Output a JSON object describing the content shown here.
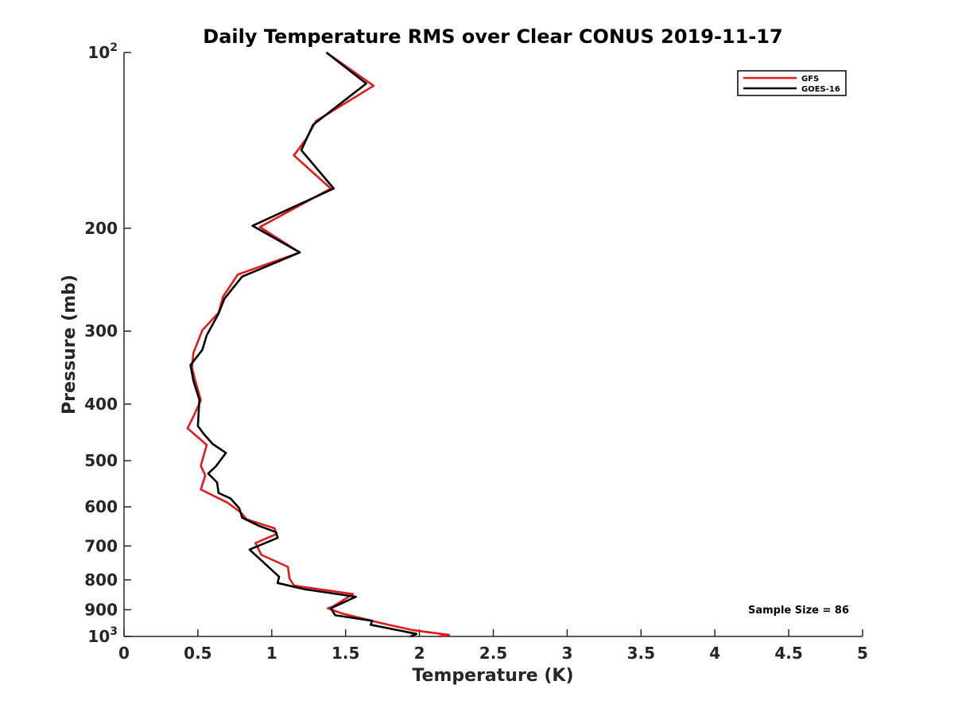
{
  "chart_data": {
    "type": "line",
    "title": "Daily Temperature RMS over Clear CONUS 2019-11-17",
    "xlabel": "Temperature (K)",
    "ylabel": "Pressure (mb)",
    "xlim": [
      0,
      5
    ],
    "ylim": [
      100,
      1000
    ],
    "y_scale": "log",
    "y_reversed": true,
    "grid": false,
    "legend_position": "top-right",
    "x_ticks": [
      {
        "value": 0,
        "label": "0"
      },
      {
        "value": 0.5,
        "label": "0.5"
      },
      {
        "value": 1,
        "label": "1"
      },
      {
        "value": 1.5,
        "label": "1.5"
      },
      {
        "value": 2,
        "label": "2"
      },
      {
        "value": 2.5,
        "label": "2.5"
      },
      {
        "value": 3,
        "label": "3"
      },
      {
        "value": 3.5,
        "label": "3.5"
      },
      {
        "value": 4,
        "label": "4"
      },
      {
        "value": 4.5,
        "label": "4.5"
      },
      {
        "value": 5,
        "label": "5"
      }
    ],
    "y_ticks": [
      {
        "value": 100,
        "base": "10",
        "exp": "2"
      },
      {
        "value": 200,
        "base": "200",
        "exp": ""
      },
      {
        "value": 300,
        "base": "300",
        "exp": ""
      },
      {
        "value": 400,
        "base": "400",
        "exp": ""
      },
      {
        "value": 500,
        "base": "500",
        "exp": ""
      },
      {
        "value": 600,
        "base": "600",
        "exp": ""
      },
      {
        "value": 700,
        "base": "700",
        "exp": ""
      },
      {
        "value": 800,
        "base": "800",
        "exp": ""
      },
      {
        "value": 900,
        "base": "900",
        "exp": ""
      },
      {
        "value": 1000,
        "base": "10",
        "exp": "3"
      }
    ],
    "annotation": "Sample Size = 86",
    "series": [
      {
        "name": "GFS",
        "color": "#e31a1c",
        "points": [
          [
            1.37,
            100
          ],
          [
            1.69,
            114
          ],
          [
            1.3,
            131
          ],
          [
            1.23,
            141
          ],
          [
            1.15,
            150
          ],
          [
            1.4,
            171
          ],
          [
            0.92,
            199
          ],
          [
            1.19,
            220
          ],
          [
            0.77,
            240
          ],
          [
            0.67,
            262
          ],
          [
            0.64,
            279
          ],
          [
            0.53,
            299
          ],
          [
            0.47,
            327
          ],
          [
            0.46,
            346
          ],
          [
            0.48,
            363
          ],
          [
            0.52,
            394
          ],
          [
            0.47,
            420
          ],
          [
            0.43,
            440
          ],
          [
            0.56,
            470
          ],
          [
            0.52,
            510
          ],
          [
            0.55,
            530
          ],
          [
            0.52,
            560
          ],
          [
            0.7,
            590
          ],
          [
            0.79,
            613
          ],
          [
            0.83,
            630
          ],
          [
            1.02,
            653
          ],
          [
            1.03,
            668
          ],
          [
            0.89,
            692
          ],
          [
            0.93,
            725
          ],
          [
            1.11,
            760
          ],
          [
            1.12,
            795
          ],
          [
            1.15,
            818
          ],
          [
            1.55,
            846
          ],
          [
            1.41,
            890
          ],
          [
            1.38,
            895
          ],
          [
            1.48,
            914
          ],
          [
            1.75,
            950
          ],
          [
            1.95,
            975
          ],
          [
            2.2,
            994
          ],
          [
            2.13,
            1000
          ]
        ]
      },
      {
        "name": "GOES-16",
        "color": "#000000",
        "points": [
          [
            1.37,
            100
          ],
          [
            1.64,
            113
          ],
          [
            1.28,
            133
          ],
          [
            1.2,
            147
          ],
          [
            1.42,
            171
          ],
          [
            0.87,
            198
          ],
          [
            1.19,
            220
          ],
          [
            0.8,
            242
          ],
          [
            0.68,
            264
          ],
          [
            0.64,
            280
          ],
          [
            0.56,
            305
          ],
          [
            0.53,
            323
          ],
          [
            0.45,
            343
          ],
          [
            0.47,
            365
          ],
          [
            0.51,
            393
          ],
          [
            0.5,
            436
          ],
          [
            0.54,
            450
          ],
          [
            0.6,
            468
          ],
          [
            0.69,
            485
          ],
          [
            0.62,
            512
          ],
          [
            0.57,
            526
          ],
          [
            0.63,
            545
          ],
          [
            0.64,
            568
          ],
          [
            0.72,
            580
          ],
          [
            0.78,
            603
          ],
          [
            0.8,
            626
          ],
          [
            0.91,
            646
          ],
          [
            1.03,
            663
          ],
          [
            1.04,
            678
          ],
          [
            0.85,
            710
          ],
          [
            0.94,
            745
          ],
          [
            1.05,
            790
          ],
          [
            1.04,
            810
          ],
          [
            1.22,
            830
          ],
          [
            1.57,
            855
          ],
          [
            1.4,
            895
          ],
          [
            1.43,
            920
          ],
          [
            1.68,
            940
          ],
          [
            1.67,
            955
          ],
          [
            1.98,
            990
          ],
          [
            1.94,
            1000
          ]
        ]
      }
    ]
  }
}
